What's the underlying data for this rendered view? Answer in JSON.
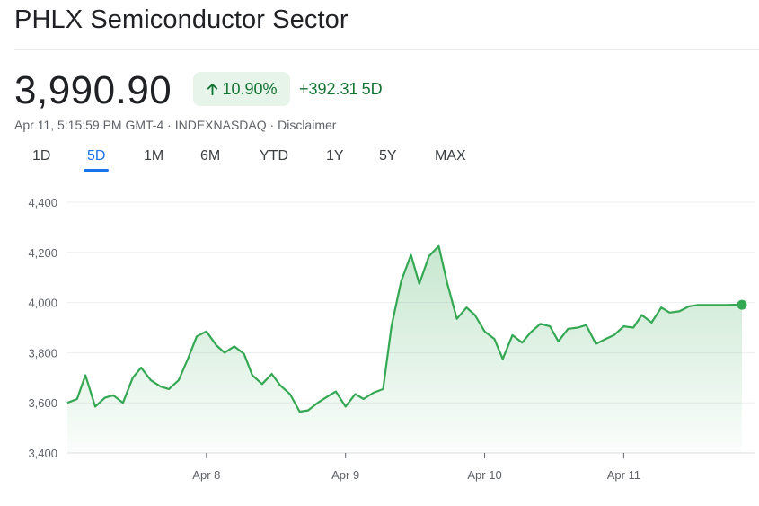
{
  "header": {
    "title": "PHLX Semiconductor Sector"
  },
  "quote": {
    "price": "3,990.90",
    "percent_change": "10.90%",
    "point_change": "+392.31",
    "period": "5D",
    "timestamp": "Apr 11, 5:15:59 PM GMT-4",
    "exchange": "INDEXNASDAQ",
    "disclaimer": "Disclaimer",
    "separator": " · "
  },
  "range_tabs": [
    "1D",
    "5D",
    "1M",
    "6M",
    "YTD",
    "1Y",
    "5Y",
    "MAX"
  ],
  "active_range": "5D",
  "colors": {
    "positive": "#137333",
    "line": "#34a853",
    "badge_bg": "#e6f4ea",
    "active_tab": "#1a73e8"
  },
  "chart_data": {
    "type": "area",
    "title": "",
    "xlabel": "",
    "ylabel": "",
    "ylim": [
      3400,
      4400
    ],
    "y_ticks": [
      3400,
      3600,
      3800,
      4000,
      4200,
      4400
    ],
    "y_tick_labels": [
      "3,400",
      "3,600",
      "3,800",
      "4,000",
      "4,200",
      "4,400"
    ],
    "x_ticks": [
      "Apr 8",
      "Apr 9",
      "Apr 10",
      "Apr 11"
    ],
    "x_range": [
      0,
      4.85
    ],
    "grid": true,
    "series": [
      {
        "x": [
          0,
          0.07,
          0.13,
          0.2,
          0.27,
          0.33,
          0.4,
          0.47,
          0.53,
          0.6,
          0.67,
          0.73,
          0.8,
          0.87,
          0.93,
          1.0,
          1.07,
          1.13,
          1.2,
          1.27,
          1.33,
          1.4,
          1.47,
          1.53,
          1.6,
          1.67,
          1.73,
          1.8,
          1.87,
          1.93,
          2.0,
          2.07,
          2.13,
          2.2,
          2.27,
          2.33,
          2.4,
          2.47,
          2.53,
          2.6,
          2.67,
          2.73,
          2.8,
          2.87,
          2.93,
          3.0,
          3.07,
          3.13,
          3.2,
          3.27,
          3.33,
          3.4,
          3.47,
          3.53,
          3.6,
          3.67,
          3.73,
          3.8,
          3.87,
          3.93,
          4.0,
          4.07,
          4.13,
          4.2,
          4.27,
          4.33,
          4.4,
          4.47,
          4.53,
          4.6,
          4.67,
          4.73,
          4.8,
          4.85
        ],
        "values": [
          3600,
          3615,
          3710,
          3585,
          3620,
          3630,
          3600,
          3700,
          3740,
          3690,
          3665,
          3655,
          3690,
          3780,
          3865,
          3885,
          3830,
          3800,
          3825,
          3795,
          3710,
          3675,
          3715,
          3670,
          3635,
          3565,
          3570,
          3600,
          3625,
          3645,
          3585,
          3635,
          3615,
          3640,
          3655,
          3905,
          4085,
          4190,
          4075,
          4185,
          4225,
          4080,
          3935,
          3980,
          3950,
          3885,
          3855,
          3775,
          3870,
          3840,
          3880,
          3915,
          3905,
          3845,
          3895,
          3900,
          3910,
          3835,
          3855,
          3870,
          3905,
          3900,
          3950,
          3920,
          3980,
          3960,
          3965,
          3985,
          3990,
          3990,
          3990,
          3990,
          3990.9,
          3990.9
        ]
      }
    ]
  }
}
